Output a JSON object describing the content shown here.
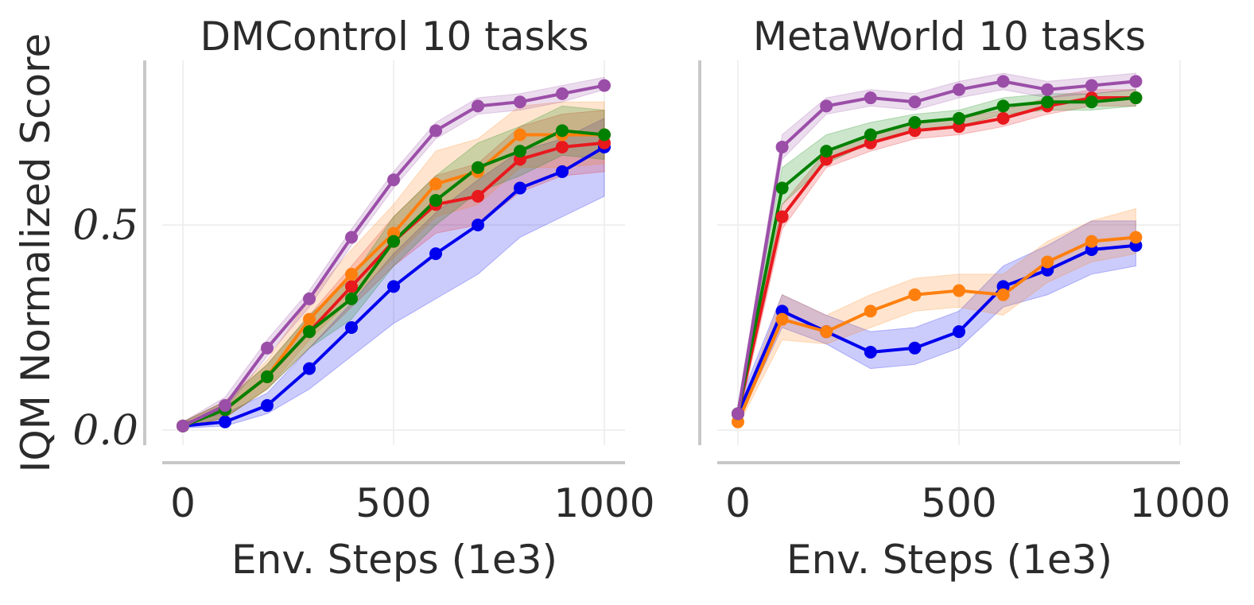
{
  "figure": {
    "ylabel": "IQM Normalized Score"
  },
  "chart_data": [
    {
      "type": "line",
      "title": "DMControl 10 tasks",
      "xlabel": "Env. Steps (1e3)",
      "ylabel": "IQM Normalized Score",
      "xlim": [
        -20,
        1050
      ],
      "ylim": [
        -0.04,
        0.88
      ],
      "xticks": [
        0,
        500,
        1000
      ],
      "xtick_labels": [
        "0",
        "500",
        "1000"
      ],
      "yticks": [
        0.0,
        0.5
      ],
      "ytick_labels": [
        "0.0",
        "0.5"
      ],
      "grid": true,
      "x": [
        0,
        100,
        200,
        300,
        400,
        500,
        600,
        700,
        800,
        900,
        1000
      ],
      "series": [
        {
          "name": "blue",
          "color": "#0000ee",
          "values": [
            0.01,
            0.02,
            0.06,
            0.15,
            0.25,
            0.35,
            0.43,
            0.5,
            0.59,
            0.63,
            0.69
          ],
          "lower": [
            0.005,
            0.01,
            0.04,
            0.1,
            0.18,
            0.26,
            0.32,
            0.38,
            0.47,
            0.52,
            0.57
          ],
          "upper": [
            0.02,
            0.04,
            0.09,
            0.2,
            0.31,
            0.43,
            0.53,
            0.61,
            0.68,
            0.71,
            0.76
          ]
        },
        {
          "name": "red",
          "color": "#e8191d",
          "values": [
            0.01,
            0.05,
            0.13,
            0.24,
            0.35,
            0.46,
            0.55,
            0.57,
            0.66,
            0.69,
            0.7
          ],
          "lower": [
            0.005,
            0.03,
            0.1,
            0.2,
            0.3,
            0.4,
            0.48,
            0.5,
            0.58,
            0.62,
            0.63
          ],
          "upper": [
            0.02,
            0.07,
            0.16,
            0.28,
            0.4,
            0.52,
            0.62,
            0.65,
            0.74,
            0.77,
            0.78
          ]
        },
        {
          "name": "orange",
          "color": "#ff7f0e",
          "values": [
            0.01,
            0.05,
            0.13,
            0.27,
            0.38,
            0.48,
            0.6,
            0.63,
            0.72,
            0.72,
            0.72
          ],
          "lower": [
            0.005,
            0.03,
            0.1,
            0.22,
            0.32,
            0.42,
            0.52,
            0.55,
            0.64,
            0.64,
            0.65
          ],
          "upper": [
            0.02,
            0.07,
            0.17,
            0.32,
            0.44,
            0.55,
            0.68,
            0.71,
            0.79,
            0.8,
            0.8
          ]
        },
        {
          "name": "green",
          "color": "#008000",
          "values": [
            0.01,
            0.05,
            0.13,
            0.24,
            0.32,
            0.46,
            0.56,
            0.64,
            0.68,
            0.73,
            0.72
          ],
          "lower": [
            0.005,
            0.03,
            0.1,
            0.2,
            0.27,
            0.4,
            0.5,
            0.58,
            0.62,
            0.67,
            0.66
          ],
          "upper": [
            0.02,
            0.07,
            0.16,
            0.28,
            0.37,
            0.52,
            0.62,
            0.7,
            0.74,
            0.79,
            0.78
          ]
        },
        {
          "name": "purple",
          "color": "#9b4ea8",
          "values": [
            0.01,
            0.06,
            0.2,
            0.32,
            0.47,
            0.61,
            0.73,
            0.79,
            0.8,
            0.82,
            0.84
          ],
          "lower": [
            0.005,
            0.05,
            0.18,
            0.3,
            0.45,
            0.59,
            0.71,
            0.77,
            0.78,
            0.8,
            0.83
          ],
          "upper": [
            0.02,
            0.08,
            0.22,
            0.34,
            0.49,
            0.63,
            0.75,
            0.81,
            0.82,
            0.84,
            0.86
          ]
        }
      ]
    },
    {
      "type": "line",
      "title": "MetaWorld 10 tasks",
      "xlabel": "Env. Steps (1e3)",
      "ylim": [
        -0.04,
        0.88
      ],
      "xlim": [
        -20,
        1050
      ],
      "xticks": [
        0,
        500,
        1000
      ],
      "xtick_labels": [
        "0",
        "500",
        "1000"
      ],
      "yticks": [
        0.0,
        0.5
      ],
      "grid": true,
      "x": [
        0,
        100,
        200,
        300,
        400,
        500,
        600,
        700,
        800,
        900
      ],
      "series": [
        {
          "name": "blue",
          "color": "#0000ee",
          "values": [
            0.04,
            0.29,
            0.24,
            0.19,
            0.2,
            0.24,
            0.35,
            0.39,
            0.44,
            0.45
          ],
          "lower": [
            0.02,
            0.25,
            0.21,
            0.15,
            0.16,
            0.2,
            0.3,
            0.33,
            0.38,
            0.4
          ],
          "upper": [
            0.06,
            0.33,
            0.28,
            0.24,
            0.25,
            0.29,
            0.4,
            0.45,
            0.51,
            0.51
          ]
        },
        {
          "name": "orange",
          "color": "#ff7f0e",
          "values": [
            0.02,
            0.27,
            0.24,
            0.29,
            0.33,
            0.34,
            0.33,
            0.41,
            0.46,
            0.47
          ],
          "lower": [
            0.01,
            0.22,
            0.21,
            0.25,
            0.29,
            0.3,
            0.28,
            0.36,
            0.41,
            0.43
          ],
          "upper": [
            0.03,
            0.33,
            0.28,
            0.33,
            0.37,
            0.38,
            0.38,
            0.46,
            0.51,
            0.54
          ]
        },
        {
          "name": "red",
          "color": "#e8191d",
          "values": [
            0.04,
            0.52,
            0.66,
            0.7,
            0.73,
            0.74,
            0.76,
            0.79,
            0.81,
            0.81
          ],
          "lower": [
            0.02,
            0.49,
            0.64,
            0.68,
            0.71,
            0.72,
            0.74,
            0.77,
            0.79,
            0.79
          ],
          "upper": [
            0.06,
            0.55,
            0.68,
            0.72,
            0.75,
            0.76,
            0.78,
            0.81,
            0.83,
            0.83
          ]
        },
        {
          "name": "green",
          "color": "#008000",
          "values": [
            0.04,
            0.59,
            0.68,
            0.72,
            0.75,
            0.76,
            0.79,
            0.8,
            0.8,
            0.81
          ],
          "lower": [
            0.02,
            0.55,
            0.65,
            0.7,
            0.73,
            0.74,
            0.77,
            0.78,
            0.78,
            0.79
          ],
          "upper": [
            0.06,
            0.64,
            0.72,
            0.75,
            0.77,
            0.78,
            0.81,
            0.82,
            0.82,
            0.83
          ]
        },
        {
          "name": "purple",
          "color": "#9b4ea8",
          "values": [
            0.04,
            0.69,
            0.79,
            0.81,
            0.8,
            0.83,
            0.85,
            0.83,
            0.84,
            0.85
          ],
          "lower": [
            0.02,
            0.66,
            0.77,
            0.79,
            0.78,
            0.81,
            0.83,
            0.81,
            0.82,
            0.83
          ],
          "upper": [
            0.06,
            0.72,
            0.81,
            0.83,
            0.82,
            0.85,
            0.87,
            0.85,
            0.86,
            0.87
          ]
        }
      ]
    }
  ]
}
